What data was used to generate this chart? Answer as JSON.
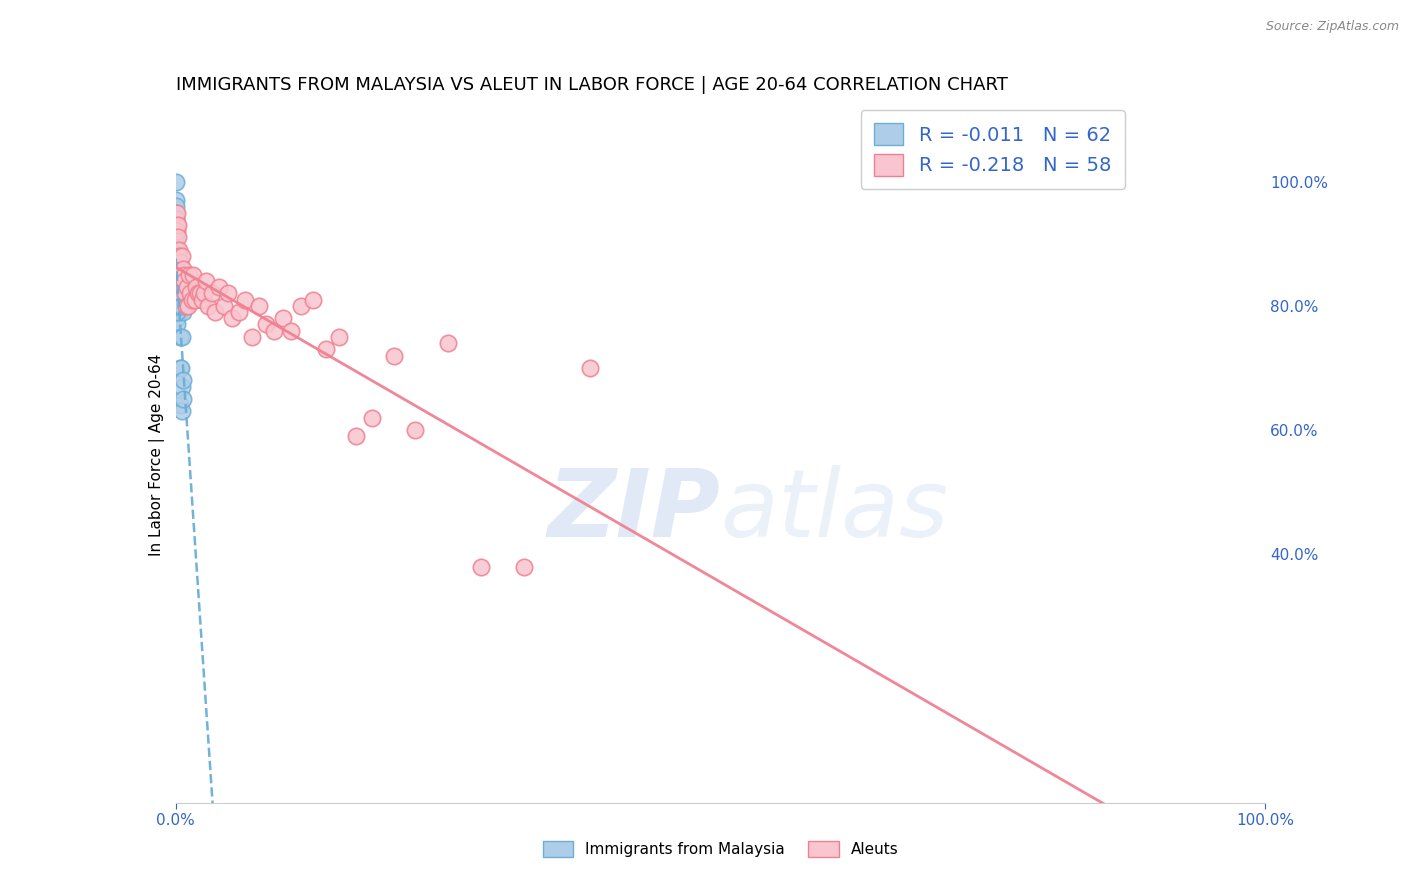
{
  "title": "IMMIGRANTS FROM MALAYSIA VS ALEUT IN LABOR FORCE | AGE 20-64 CORRELATION CHART",
  "source": "Source: ZipAtlas.com",
  "ylabel": "In Labor Force | Age 20-64",
  "legend_r1": "R = -0.011",
  "legend_n1": "N = 62",
  "legend_r2": "R = -0.218",
  "legend_n2": "N = 58",
  "watermark": "ZIPatlas",
  "legend_labels": [
    "Immigrants from Malaysia",
    "Aleuts"
  ],
  "blue_color": "#6baed6",
  "blue_fill": "#aecde8",
  "pink_color": "#f08090",
  "pink_fill": "#f9c5cf",
  "grid_color": "#cccccc",
  "background_color": "#ffffff",
  "title_fontsize": 13,
  "axis_fontsize": 11,
  "tick_fontsize": 11,
  "right_tick_color": "#3366cc",
  "bottom_tick_color": "#3366cc",
  "malaysia_x": [
    0.0002,
    0.0003,
    0.0004,
    0.0005,
    0.0005,
    0.0006,
    0.0006,
    0.0007,
    0.0007,
    0.0008,
    0.0008,
    0.0009,
    0.0009,
    0.001,
    0.001,
    0.0011,
    0.0012,
    0.0012,
    0.0013,
    0.0014,
    0.0015,
    0.0016,
    0.0017,
    0.0018,
    0.0019,
    0.002,
    0.0022,
    0.0024,
    0.0026,
    0.0028,
    0.003,
    0.0033,
    0.0035,
    0.0038,
    0.0042,
    0.0045,
    0.0048,
    0.0052,
    0.0055,
    0.006,
    0.0065,
    0.007,
    0.0075,
    0.0003,
    0.0004,
    0.0005,
    0.0006,
    0.0007,
    0.0008,
    0.0009,
    0.001,
    0.0011,
    0.0013,
    0.0015,
    0.002,
    0.0025,
    0.003,
    0.0035,
    0.004,
    0.005,
    0.006,
    0.007
  ],
  "malaysia_y": [
    1.0,
    0.97,
    0.96,
    0.95,
    0.93,
    0.94,
    0.91,
    0.89,
    0.87,
    0.86,
    0.85,
    0.84,
    0.82,
    0.83,
    0.81,
    0.83,
    0.82,
    0.8,
    0.81,
    0.78,
    0.77,
    0.82,
    0.83,
    0.82,
    0.81,
    0.8,
    0.82,
    0.8,
    0.83,
    0.79,
    0.81,
    0.82,
    0.7,
    0.64,
    0.75,
    0.82,
    0.81,
    0.7,
    0.63,
    0.67,
    0.79,
    0.65,
    0.81,
    0.88,
    0.86,
    0.85,
    0.83,
    0.82,
    0.84,
    0.81,
    0.83,
    0.82,
    0.79,
    0.8,
    0.82,
    0.8,
    0.83,
    0.81,
    0.82,
    0.8,
    0.75,
    0.68
  ],
  "aleut_x": [
    0.0004,
    0.0009,
    0.0013,
    0.0016,
    0.002,
    0.0024,
    0.0028,
    0.0033,
    0.0038,
    0.0043,
    0.005,
    0.0055,
    0.0062,
    0.0068,
    0.0074,
    0.008,
    0.0088,
    0.0095,
    0.0105,
    0.0115,
    0.0125,
    0.0135,
    0.0148,
    0.0162,
    0.0175,
    0.019,
    0.0205,
    0.022,
    0.024,
    0.026,
    0.028,
    0.03,
    0.033,
    0.036,
    0.04,
    0.044,
    0.048,
    0.052,
    0.058,
    0.064,
    0.07,
    0.076,
    0.083,
    0.09,
    0.098,
    0.106,
    0.115,
    0.126,
    0.138,
    0.15,
    0.165,
    0.18,
    0.2,
    0.22,
    0.25,
    0.28,
    0.32,
    0.38
  ],
  "aleut_y": [
    0.94,
    0.93,
    0.95,
    0.92,
    0.93,
    0.91,
    0.89,
    0.88,
    0.85,
    0.87,
    0.85,
    0.88,
    0.83,
    0.86,
    0.85,
    0.84,
    0.82,
    0.8,
    0.83,
    0.8,
    0.85,
    0.82,
    0.81,
    0.85,
    0.81,
    0.83,
    0.82,
    0.82,
    0.81,
    0.82,
    0.84,
    0.8,
    0.82,
    0.79,
    0.83,
    0.8,
    0.82,
    0.78,
    0.79,
    0.81,
    0.75,
    0.8,
    0.77,
    0.76,
    0.78,
    0.76,
    0.8,
    0.81,
    0.73,
    0.75,
    0.59,
    0.62,
    0.72,
    0.6,
    0.74,
    0.38,
    0.38,
    0.7
  ],
  "xlim": [
    0.0,
    1.0
  ],
  "ylim": [
    0.0,
    1.12
  ]
}
